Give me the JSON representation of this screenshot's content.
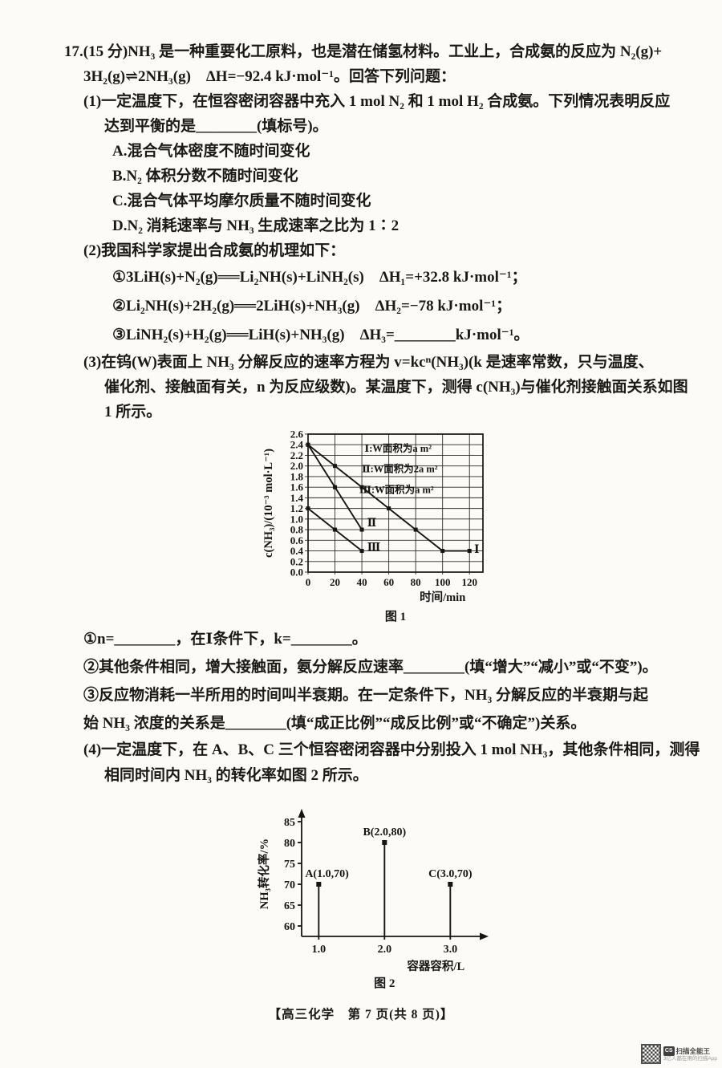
{
  "exam": {
    "stem": [
      "17.(15 分)NH₃ 是一种重要化工原料，也是潜在储氢材料。工业上，合成氨的反应为 N₂(g)+",
      "3H₂(g)⇌2NH₃(g)　ΔH=−92.4 kJ·mol⁻¹。回答下列问题："
    ],
    "q1": {
      "prompt": [
        "(1)一定温度下，在恒容密闭容器中充入 1 mol N₂ 和 1 mol H₂ 合成氨。下列情况表明反应",
        "达到平衡的是________(填标号)。"
      ],
      "options": [
        "A.混合气体密度不随时间变化",
        "B.N₂ 体积分数不随时间变化",
        "C.混合气体平均摩尔质量不随时间变化",
        "D.N₂ 消耗速率与 NH₃ 生成速率之比为 1∶2"
      ]
    },
    "q2": {
      "prompt": "(2)我国科学家提出合成氨的机理如下：",
      "equations": [
        "①3LiH(s)+N₂(g)══Li₂NH(s)+LiNH₂(s)　ΔH₁=+32.8 kJ·mol⁻¹；",
        "②Li₂NH(s)+2H₂(g)══2LiH(s)+NH₃(g)　ΔH₂=−78 kJ·mol⁻¹；",
        "③LiNH₂(s)+H₂(g)══LiH(s)+NH₃(g)　ΔH₃=________kJ·mol⁻¹。"
      ]
    },
    "q3": {
      "prompt": [
        "(3)在钨(W)表面上 NH₃ 分解反应的速率方程为 v=kcⁿ(NH₃)(k 是速率常数，只与温度、",
        "催化剂、接触面有关，n 为反应级数)。某温度下，测得 c(NH₃)与催化剂接触面关系如图",
        "1 所示。"
      ],
      "subs": [
        "①n=________，在Ⅰ条件下，k=________。",
        "②其他条件相同，增大接触面，氨分解反应速率________(填“增大”“减小”或“不变”)。",
        "③反应物消耗一半所用的时间叫半衰期。在一定条件下，NH₃ 分解反应的半衰期与起"
      ],
      "sub3_cont": "始 NH₃ 浓度的关系是________(填“成正比例”“成反比例”或“不确定”)关系。"
    },
    "q4": {
      "prompt": [
        "(4)一定温度下，在 A、B、C 三个恒容密闭容器中分别投入 1 mol NH₃，其他条件相同，测得",
        "相同时间内 NH₃ 的转化率如图 2 所示。"
      ]
    },
    "footer": "【高三化学　第 7 页(共 8 页)】",
    "watermark": {
      "badge": "CS",
      "app": "扫描全能王",
      "tagline": "3亿人都在用的扫描App"
    }
  },
  "chart_data": [
    {
      "type": "line",
      "title": "图 1",
      "xlabel": "时间/min",
      "ylabel": "c(NH₃)/(10⁻³ mol·L⁻¹)",
      "xlim": [
        0,
        130
      ],
      "ylim": [
        0,
        2.6
      ],
      "xticks": [
        0,
        20,
        40,
        60,
        80,
        100,
        120
      ],
      "yticks": [
        0.0,
        0.2,
        0.4,
        0.6,
        0.8,
        1.0,
        1.2,
        1.4,
        1.6,
        1.8,
        2.0,
        2.2,
        2.4,
        2.6
      ],
      "grid": true,
      "legend": [
        "Ⅰ:W面积为a m²",
        "Ⅱ:W面积为2a m²",
        "Ⅲ:W面积为a m²"
      ],
      "legend_position": "inside-top-right",
      "series": [
        {
          "name": "Ⅰ",
          "x": [
            0,
            20,
            40,
            60,
            80,
            100,
            120
          ],
          "y": [
            2.4,
            2.0,
            1.6,
            1.2,
            0.8,
            0.4,
            0.4
          ]
        },
        {
          "name": "Ⅱ",
          "x": [
            0,
            20,
            40
          ],
          "y": [
            2.4,
            1.6,
            0.8
          ]
        },
        {
          "name": "Ⅲ",
          "x": [
            0,
            20,
            40
          ],
          "y": [
            1.2,
            0.8,
            0.4
          ]
        }
      ],
      "line_labels": [
        {
          "text": "Ⅱ",
          "x": 44,
          "y": 0.92
        },
        {
          "text": "Ⅲ",
          "x": 44,
          "y": 0.46
        },
        {
          "text": "Ⅰ",
          "x": 123.5,
          "y": 0.42
        }
      ]
    },
    {
      "type": "scatter",
      "title": "图 2",
      "xlabel": "容器容积/L",
      "ylabel": "NH₃转化率/%",
      "xticks": [
        1.0,
        2.0,
        3.0
      ],
      "yticks": [
        60,
        65,
        70,
        75,
        80,
        85
      ],
      "ylim": [
        57.5,
        88
      ],
      "points": [
        {
          "name": "A",
          "label": "A(1.0,70)",
          "x": 1.0,
          "y": 70
        },
        {
          "name": "B",
          "label": "B(2.0,80)",
          "x": 2.0,
          "y": 80
        },
        {
          "name": "C",
          "label": "C(3.0,70)",
          "x": 3.0,
          "y": 70
        }
      ]
    }
  ]
}
